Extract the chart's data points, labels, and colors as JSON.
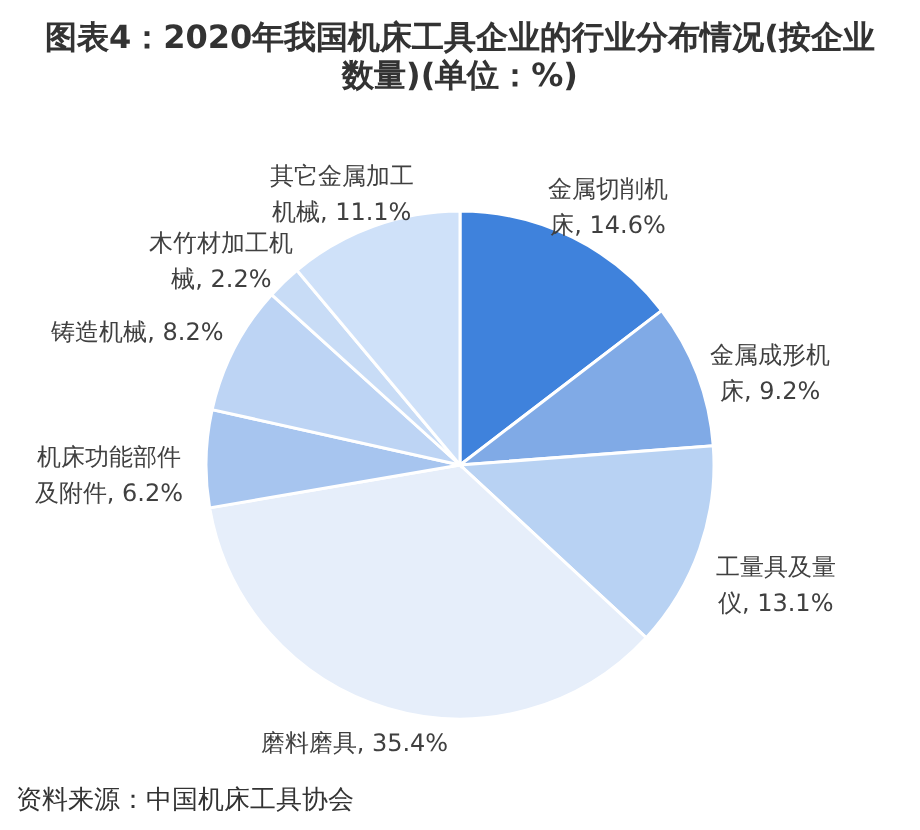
{
  "chart_data": {
    "type": "pie",
    "title": "图表4：2020年我国机床工具企业的行业分布情况(按企业数量)(单位：%)",
    "categories": [
      "金属切削机床",
      "金属成形机床",
      "工量具及量仪",
      "磨料磨具",
      "机床功能部件及附件",
      "铸造机械",
      "木竹材加工机械",
      "其它金属加工机械"
    ],
    "values": [
      14.6,
      9.2,
      13.1,
      35.4,
      6.2,
      8.2,
      2.2,
      11.1
    ],
    "colors": [
      "#3f82dc",
      "#80aae6",
      "#b8d2f3",
      "#e6eefa",
      "#a7c5ef",
      "#bdd4f4",
      "#c8dcf6",
      "#cfe1f9"
    ],
    "value_labels": [
      "14.6%",
      "9.2%",
      "13.1%",
      "35.4%",
      "6.2%",
      "8.2%",
      "2.2%",
      "11.1%"
    ],
    "annotations": [
      "资料来源：中国机床工具协会"
    ]
  }
}
